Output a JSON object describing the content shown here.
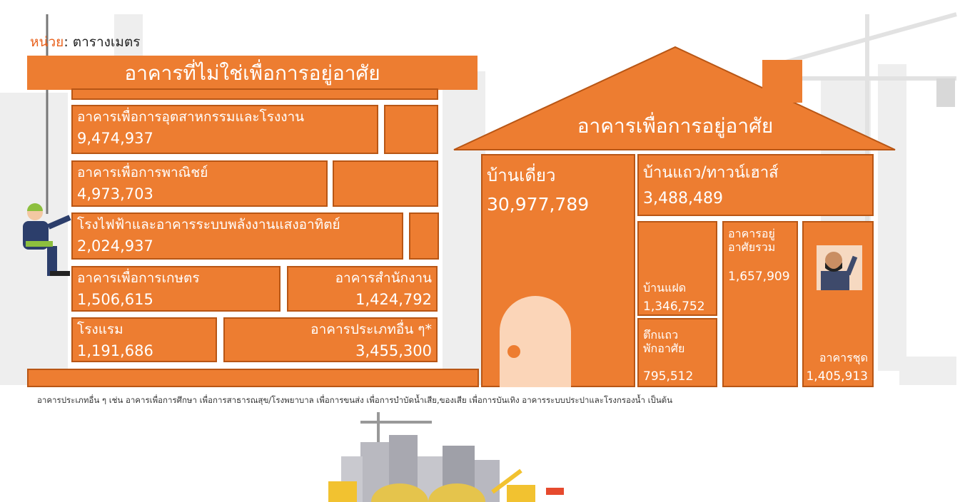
{
  "unit": {
    "label": "หน่วย",
    "value": ": ตารางเมตร"
  },
  "non_residential": {
    "title": "อาคารที่ไม่ใช่เพื่อการอยู่อาศัย",
    "items": [
      {
        "label": "อาคารเพื่อการอุตสาหกรรมและโรงงาน",
        "value": "9,474,937"
      },
      {
        "label": "อาคารเพื่อการพาณิชย์",
        "value": "4,973,703"
      },
      {
        "label": "โรงไฟฟ้าและอาคารระบบพลังงานแสงอาทิตย์",
        "value": "2,024,937"
      },
      {
        "label": "อาคารเพื่อการเกษตร",
        "value": "1,506,615"
      },
      {
        "label": "อาคารสำนักงาน",
        "value": "1,424,792"
      },
      {
        "label": "โรงแรม",
        "value": "1,191,686"
      },
      {
        "label": "อาคารประเภทอื่น ๆ*",
        "value": "3,455,300"
      }
    ]
  },
  "residential": {
    "title": "อาคารเพื่อการอยู่อาศัย",
    "items": [
      {
        "label": "บ้านเดี่ยว",
        "value": "30,977,789"
      },
      {
        "label": "บ้านแถว/ทาวน์เฮาส์",
        "value": "3,488,489"
      },
      {
        "label": "บ้านแฝด",
        "value": "1,346,752"
      },
      {
        "label": "ตึกแถว\nพักอาศัย",
        "value": "795,512"
      },
      {
        "label": "อาคารอยู่\nอาศัยรวม",
        "value": "1,657,909"
      },
      {
        "label": "อาคารชุด",
        "value": "1,405,913"
      }
    ]
  },
  "footnote": "อาคารประเภทอื่น ๆ เช่น อาคารเพื่อการศึกษา เพื่อการสาธารณสุข/โรงพยาบาล เพื่อการขนส่ง เพื่อการบำบัดน้ำเสีย,ของเสีย เพื่อการบันเทิง  อาคารระบบประปาและโรงกรองน้ำ เป็นต้น"
}
